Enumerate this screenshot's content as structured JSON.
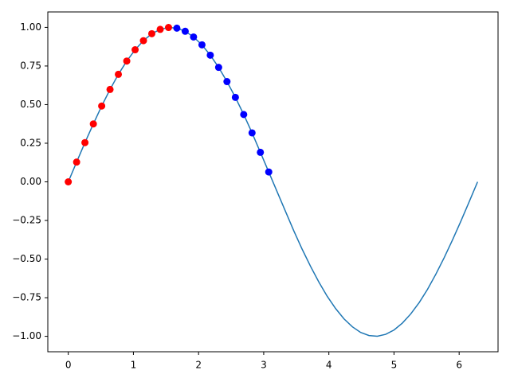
{
  "chart_data": {
    "type": "line",
    "xlim": [
      -0.314,
      6.597
    ],
    "ylim": [
      -1.1,
      1.1
    ],
    "xticks": [
      0,
      1,
      2,
      3,
      4,
      5,
      6
    ],
    "yticks": [
      {
        "value": -1,
        "label": "−1.00"
      },
      {
        "value": -0.75,
        "label": "−0.75"
      },
      {
        "value": -0.5,
        "label": "−0.50"
      },
      {
        "value": -0.25,
        "label": "−0.25"
      },
      {
        "value": 0,
        "label": "0.00"
      },
      {
        "value": 0.25,
        "label": "0.25"
      },
      {
        "value": 0.5,
        "label": "0.50"
      },
      {
        "value": 0.75,
        "label": "0.75"
      },
      {
        "value": 1,
        "label": "1.00"
      }
    ],
    "grid": false,
    "series": [
      {
        "style": "line",
        "color": "#1f77b4",
        "x": [
          0,
          0.128,
          0.256,
          0.385,
          0.513,
          0.641,
          0.769,
          0.898,
          1.026,
          1.154,
          1.282,
          1.411,
          1.539,
          1.667,
          1.795,
          1.923,
          2.052,
          2.18,
          2.308,
          2.436,
          2.565,
          2.693,
          2.821,
          2.949,
          3.077,
          3.206,
          3.334,
          3.462,
          3.59,
          3.719,
          3.847,
          3.975,
          4.103,
          4.232,
          4.36,
          4.488,
          4.616,
          4.744,
          4.873,
          5.001,
          5.129,
          5.257,
          5.386,
          5.514,
          5.642,
          5.77,
          5.899,
          6.027,
          6.155,
          6.283
        ],
        "values": [
          0,
          0.128,
          0.254,
          0.375,
          0.491,
          0.598,
          0.696,
          0.782,
          0.855,
          0.914,
          0.959,
          0.987,
          0.9995,
          0.995,
          0.975,
          0.938,
          0.887,
          0.82,
          0.741,
          0.649,
          0.547,
          0.436,
          0.317,
          0.191,
          0.064,
          -0.064,
          -0.191,
          -0.317,
          -0.436,
          -0.547,
          -0.649,
          -0.741,
          -0.82,
          -0.887,
          -0.938,
          -0.975,
          -0.995,
          -0.9995,
          -0.987,
          -0.959,
          -0.914,
          -0.855,
          -0.782,
          -0.696,
          -0.598,
          -0.491,
          -0.375,
          -0.254,
          -0.128,
          0
        ]
      },
      {
        "style": "points",
        "color": "#ff0000",
        "x": [
          0,
          0.128,
          0.256,
          0.385,
          0.513,
          0.641,
          0.769,
          0.898,
          1.026,
          1.154,
          1.282,
          1.411,
          1.539
        ],
        "values": [
          0,
          0.128,
          0.254,
          0.375,
          0.491,
          0.598,
          0.696,
          0.782,
          0.855,
          0.914,
          0.959,
          0.987,
          0.9995
        ]
      },
      {
        "style": "points",
        "color": "#0000ff",
        "x": [
          1.667,
          1.795,
          1.923,
          2.052,
          2.18,
          2.308,
          2.436,
          2.565,
          2.693,
          2.821,
          2.949,
          3.077
        ],
        "values": [
          0.995,
          0.975,
          0.938,
          0.887,
          0.82,
          0.741,
          0.649,
          0.547,
          0.436,
          0.317,
          0.191,
          0.064
        ]
      }
    ]
  }
}
